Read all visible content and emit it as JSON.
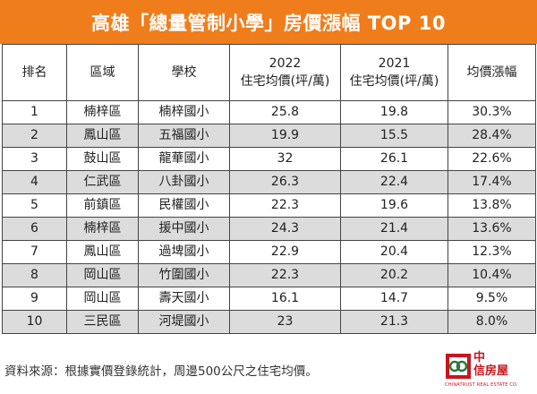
{
  "title": "高雄「總量管制小學」房價漲幅 TOP 10",
  "table": {
    "headers": {
      "rank": "排名",
      "district": "區域",
      "school": "學校",
      "price2022_line1": "2022",
      "price2022_line2": "住宅均價(坪/萬)",
      "price2021_line1": "2021",
      "price2021_line2": "住宅均價(坪/萬)",
      "growth": "均價漲幅"
    },
    "rows": [
      {
        "rank": "1",
        "district": "楠梓區",
        "school": "楠梓國小",
        "p2022": "25.8",
        "p2021": "19.8",
        "growth": "30.3%"
      },
      {
        "rank": "2",
        "district": "鳳山區",
        "school": "五福國小",
        "p2022": "19.9",
        "p2021": "15.5",
        "growth": "28.4%"
      },
      {
        "rank": "3",
        "district": "鼓山區",
        "school": "龍華國小",
        "p2022": "32",
        "p2021": "26.1",
        "growth": "22.6%"
      },
      {
        "rank": "4",
        "district": "仁武區",
        "school": "八卦國小",
        "p2022": "26.3",
        "p2021": "22.4",
        "growth": "17.4%"
      },
      {
        "rank": "5",
        "district": "前鎮區",
        "school": "民權國小",
        "p2022": "22.3",
        "p2021": "19.6",
        "growth": "13.8%"
      },
      {
        "rank": "6",
        "district": "楠梓區",
        "school": "援中國小",
        "p2022": "24.3",
        "p2021": "21.4",
        "growth": "13.6%"
      },
      {
        "rank": "7",
        "district": "鳳山區",
        "school": "過埤國小",
        "p2022": "22.9",
        "p2021": "20.4",
        "growth": "12.3%"
      },
      {
        "rank": "8",
        "district": "岡山區",
        "school": "竹圍國小",
        "p2022": "22.3",
        "p2021": "20.2",
        "growth": "10.4%"
      },
      {
        "rank": "9",
        "district": "岡山區",
        "school": "壽天國小",
        "p2022": "16.1",
        "p2021": "14.7",
        "growth": "9.5%"
      },
      {
        "rank": "10",
        "district": "三民區",
        "school": "河堤國小",
        "p2022": "23",
        "p2021": "21.3",
        "growth": "8.0%"
      }
    ]
  },
  "footer_note": "資料來源：根據實價登錄統計，周邊500公尺之住宅均價。",
  "logo": {
    "line1": "中",
    "line2": "信房屋",
    "sub": "CHINATRUST REAL ESTATE CO."
  },
  "colors": {
    "title_bg": "#f07d1c",
    "alt_row_bg": "#dcdcdc",
    "logo_red": "#c8161d"
  }
}
